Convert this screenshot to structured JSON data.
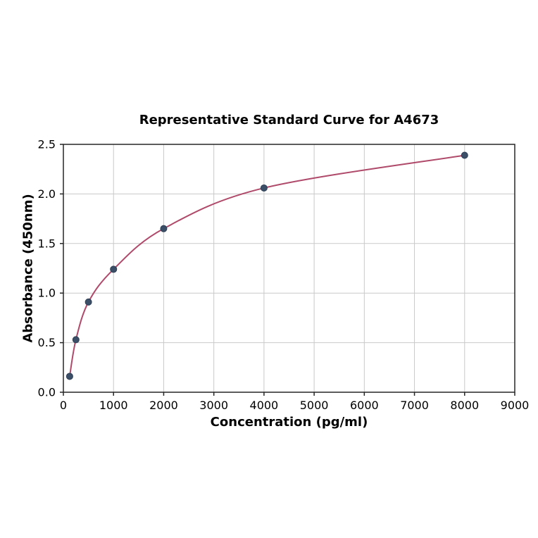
{
  "chart_data": {
    "type": "scatter",
    "title": "Representative Standard Curve for A4673",
    "xlabel": "Concentration (pg/ml)",
    "ylabel": "Absorbance (450nm)",
    "x": [
      125,
      250,
      500,
      1000,
      2000,
      4000,
      8000
    ],
    "y": [
      0.16,
      0.53,
      0.91,
      1.24,
      1.65,
      2.06,
      2.39
    ],
    "fit_curve": true,
    "xlim": [
      0,
      9000
    ],
    "ylim": [
      0,
      2.5
    ],
    "xticks": [
      0,
      1000,
      2000,
      3000,
      4000,
      5000,
      6000,
      7000,
      8000,
      9000
    ],
    "xtick_labels": [
      "0",
      "1000",
      "2000",
      "3000",
      "4000",
      "5000",
      "6000",
      "7000",
      "8000",
      "9000"
    ],
    "yticks": [
      0,
      0.5,
      1.0,
      1.5,
      2.0,
      2.5
    ],
    "ytick_labels": [
      "0.0",
      "0.5",
      "1.0",
      "1.5",
      "2.0",
      "2.5"
    ],
    "grid": true,
    "legend": "none",
    "colors": {
      "line": "#b04a6b",
      "marker_fill": "#3c4f68",
      "marker_edge": "#2d3e54",
      "grid": "#c9c9c9",
      "axis": "#262626",
      "text": "#000000",
      "background": "#ffffff"
    }
  }
}
